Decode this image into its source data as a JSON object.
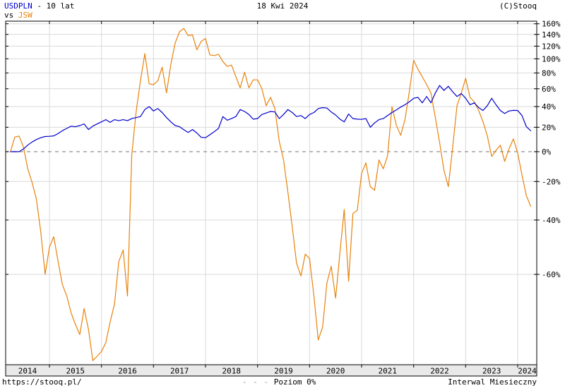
{
  "header": {
    "symbol": "USDPLN",
    "title_suffix": "- 10 lat",
    "vs_label": "vs",
    "compare_symbol": "JSW",
    "date": "18 Kwi 2024",
    "copyright": "(C)Stooq"
  },
  "footer": {
    "url": "https://stooq.pl/",
    "legend_dashes": "- - -",
    "legend_label": "Poziom 0%",
    "interval": "Interwal Miesieczny"
  },
  "colors": {
    "primary": "#0000cc",
    "compare": "#e8820c",
    "grid": "#d9d9d9",
    "zero_line": "#a0a0a0",
    "frame": "#000000",
    "band_bg": "#e9e9e9",
    "tick_text": "#000000"
  },
  "chart_data": {
    "type": "line",
    "title": "USDPLN vs JSW, 10 lat, zmiana procentowa (skala logarytmiczna)",
    "interval": "monthly",
    "x_start": "2014-04",
    "x_end": "2024-04",
    "x_year_ticks": [
      2014,
      2015,
      2016,
      2017,
      2018,
      2019,
      2020,
      2021,
      2022,
      2023,
      2024
    ],
    "y_ticks_percent": [
      160,
      140,
      120,
      100,
      80,
      60,
      40,
      20,
      0,
      -20,
      -40,
      -60
    ],
    "y_scale": "log(1+p/100)",
    "zero_level_dashed": true,
    "grid": true,
    "legend_position": "top-left",
    "series": [
      {
        "name": "USDPLN",
        "color": "#0000cc",
        "values": [
          0,
          0,
          0,
          2,
          5,
          7.5,
          9.5,
          11,
          12,
          12.2,
          12.5,
          14.5,
          17,
          19,
          21,
          20.5,
          21.5,
          23,
          18,
          21,
          23,
          25,
          27,
          24.5,
          27,
          26,
          27,
          26,
          28,
          29,
          30,
          37,
          40,
          35.5,
          38,
          34,
          29,
          25,
          21.5,
          20.5,
          17.8,
          15.5,
          18,
          15,
          11.3,
          11,
          13.5,
          16,
          19,
          30,
          26.5,
          28,
          30,
          37,
          35,
          32,
          27.5,
          28,
          32,
          33.5,
          35,
          34.5,
          28,
          32,
          37,
          34,
          30,
          31,
          28,
          32,
          34,
          38,
          39,
          38.5,
          34.5,
          31.5,
          27.5,
          25,
          32.5,
          28,
          27.5,
          27.3,
          28,
          20,
          24,
          27,
          28,
          31,
          34,
          36.5,
          39.5,
          42,
          45,
          49,
          50,
          44,
          51,
          44,
          55,
          64,
          58,
          63,
          56.5,
          51,
          54.4,
          49,
          42,
          44,
          39,
          36,
          41,
          49,
          42,
          36,
          33,
          35.5,
          36.2,
          36,
          31,
          20.5,
          17
        ]
      },
      {
        "name": "JSW",
        "color": "#e8820c",
        "values": [
          0,
          11.5,
          12.4,
          3.6,
          -12,
          -20.5,
          -30,
          -45,
          -60,
          -51,
          -47,
          -56,
          -63,
          -66,
          -70,
          -72.5,
          -74.5,
          -69,
          -73.5,
          -79,
          -78.3,
          -77.5,
          -76,
          -72,
          -68,
          -56,
          -52,
          -66,
          -2,
          35,
          70,
          108,
          66,
          65,
          70,
          88,
          55,
          92,
          125,
          145,
          151,
          138,
          139,
          114,
          128,
          133,
          106,
          105,
          107,
          96,
          89,
          91,
          75,
          61,
          81,
          61,
          71,
          71,
          60,
          41,
          50,
          38,
          8,
          -6,
          -26,
          -43,
          -56.5,
          -60.5,
          -53.5,
          -55,
          -66,
          -75.5,
          -73,
          -62.5,
          -57.5,
          -66.5,
          -53,
          -35,
          -62,
          -37,
          -35.5,
          -15,
          -8,
          -23,
          -25,
          -6,
          -12,
          -3,
          40,
          22,
          13,
          27,
          56,
          98,
          85,
          75,
          65,
          55,
          29,
          7,
          -13,
          -23,
          3,
          41,
          55,
          73,
          50,
          45,
          36,
          25,
          12.5,
          -3.5,
          1,
          5,
          -7,
          2,
          10,
          -1,
          -16,
          -28,
          -33.5
        ]
      }
    ]
  }
}
